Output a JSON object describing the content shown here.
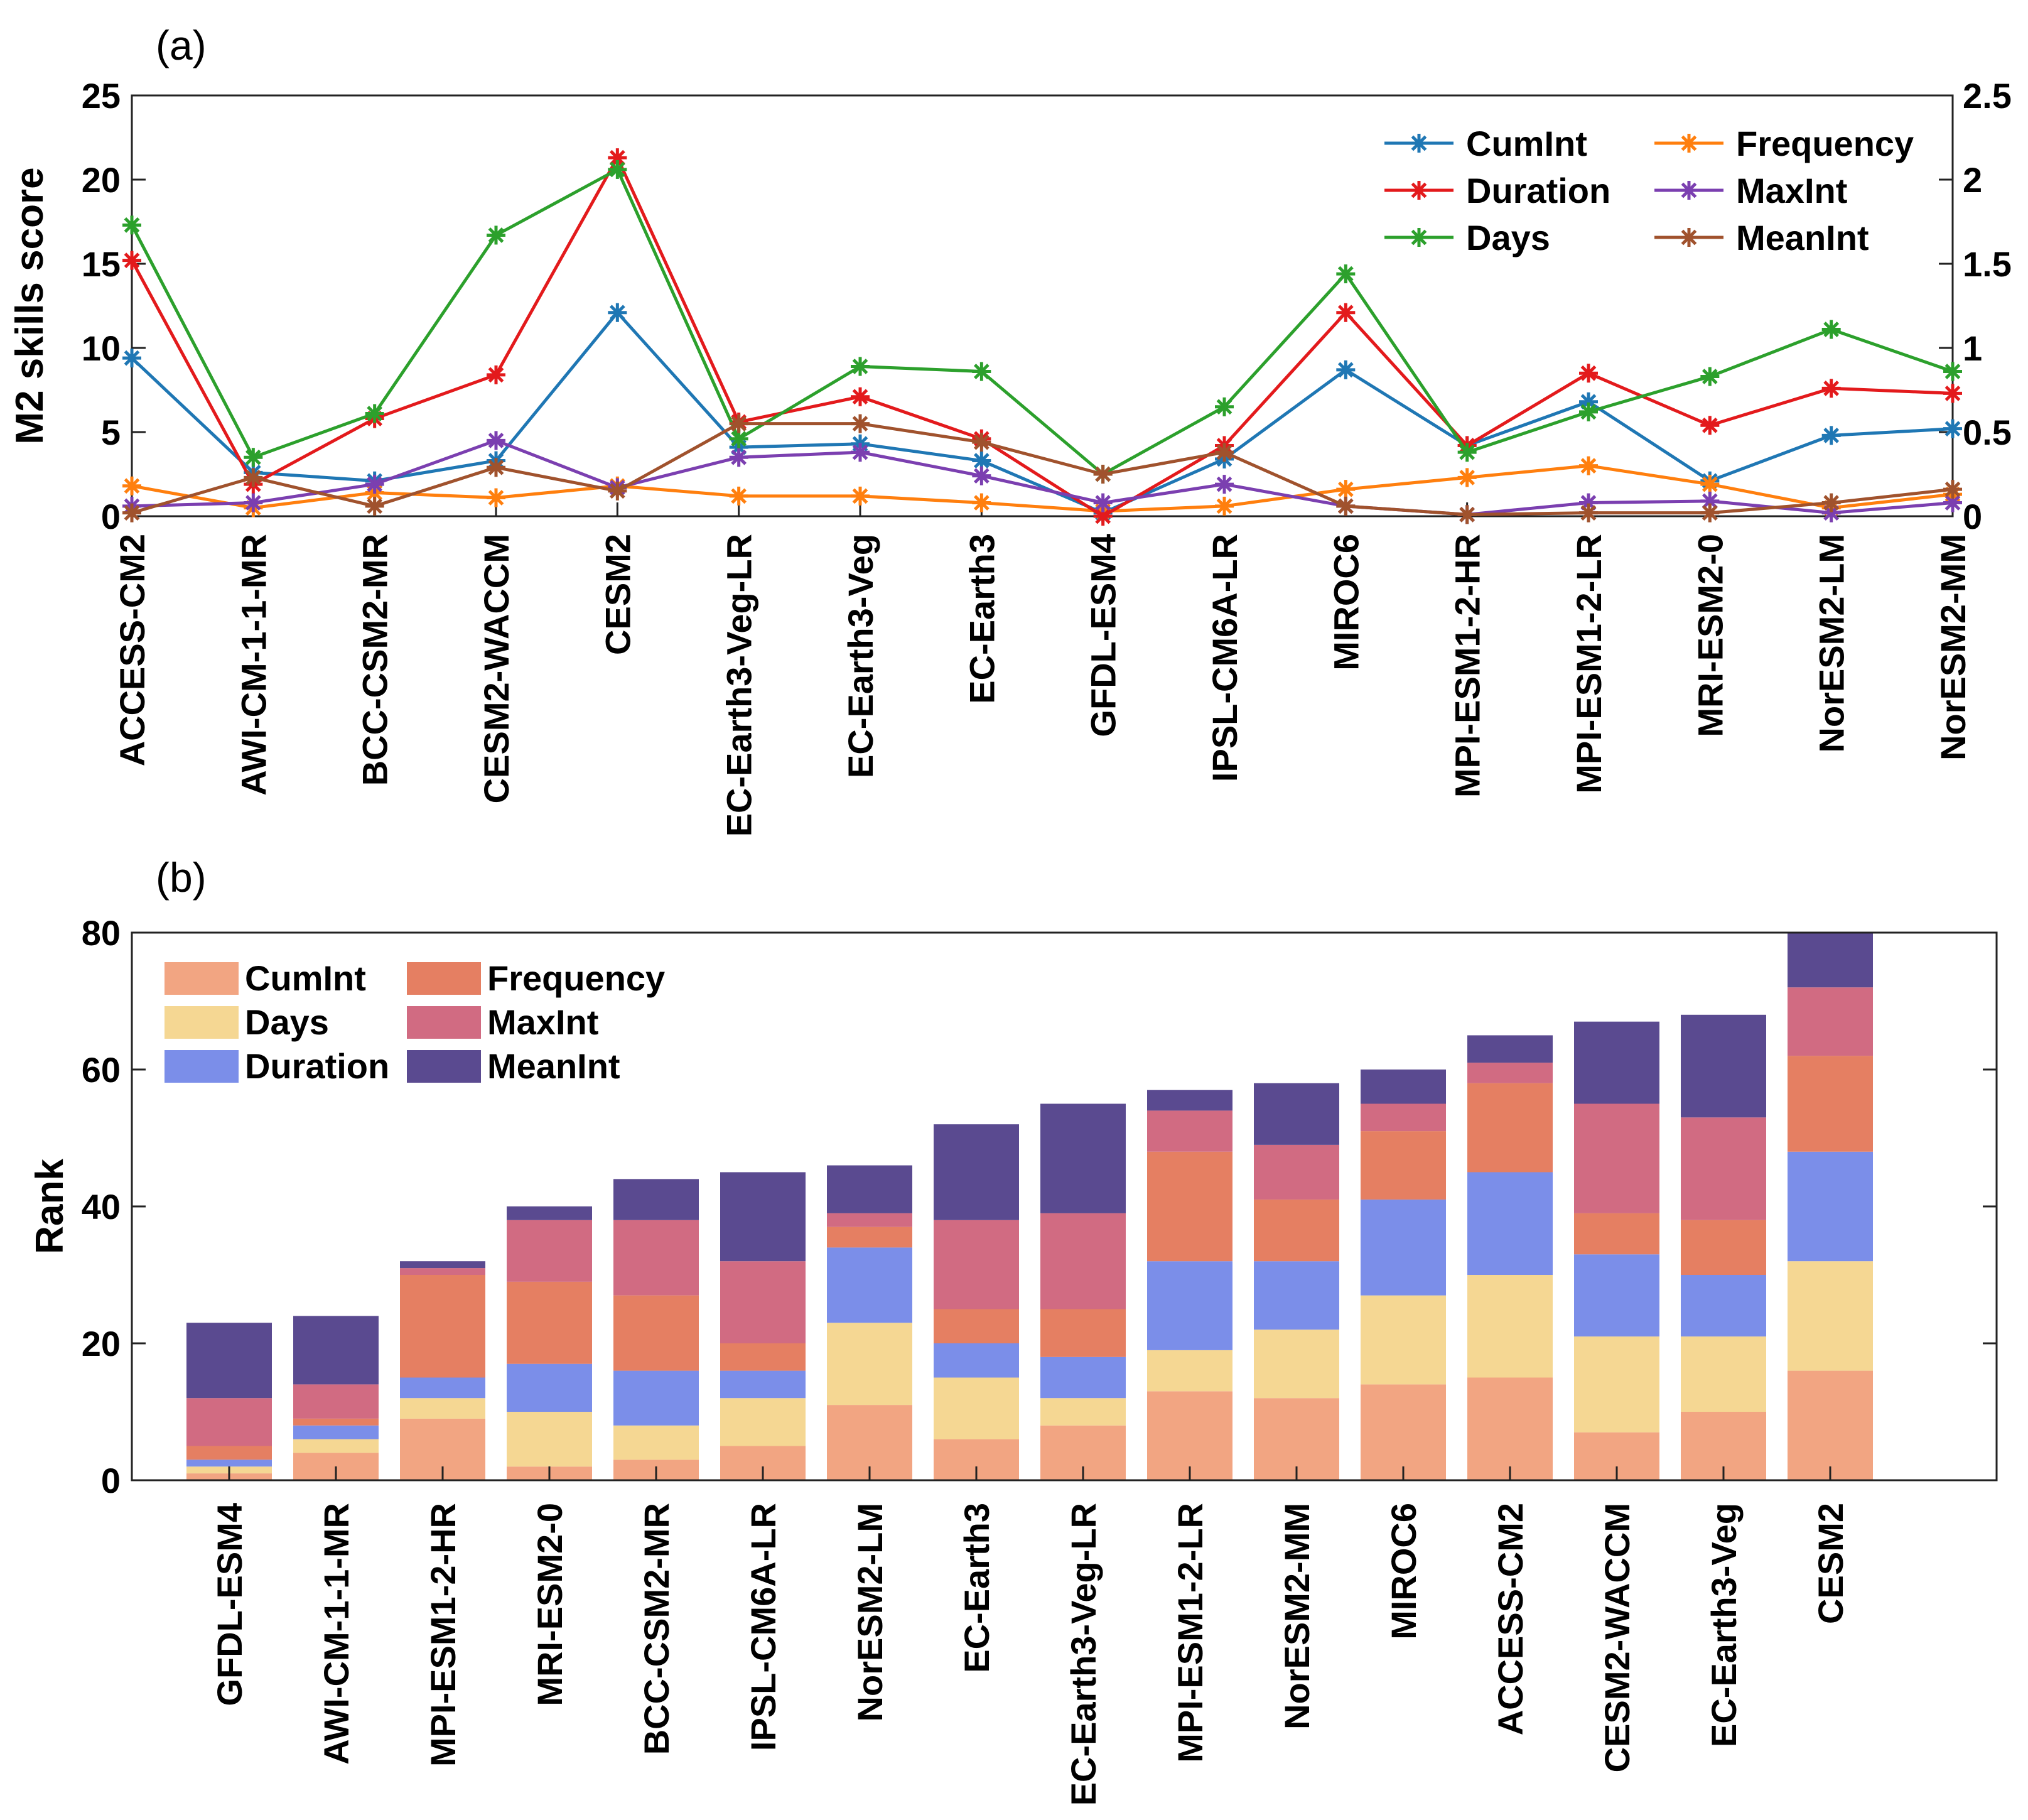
{
  "chart_data": [
    {
      "panel_label": "(a)",
      "type": "line",
      "ylabel": "M2 skills score",
      "ylim_left": [
        0,
        25
      ],
      "yticks_left": [
        "0",
        "5",
        "10",
        "15",
        "20",
        "25"
      ],
      "ylim_right": [
        0,
        2.5
      ],
      "yticks_right": [
        "0",
        "0.5",
        "1",
        "1.5",
        "2",
        "2.5"
      ],
      "grid": false,
      "legend_position": "top-right",
      "categories": [
        "ACCESS-CM2",
        "AWI-CM-1-1-MR",
        "BCC-CSM2-MR",
        "CESM2-WACCM",
        "CESM2",
        "EC-Earth3-Veg-LR",
        "EC-Earth3-Veg",
        "EC-Earth3",
        "GFDL-ESM4",
        "IPSL-CM6A-LR",
        "MIROC6",
        "MPI-ESM1-2-HR",
        "MPI-ESM1-2-LR",
        "MRI-ESM2-0",
        "NorESM2-LM",
        "NorESM2-MM"
      ],
      "series": [
        {
          "name": "CumInt",
          "axis": "left",
          "color": "#1f77b4",
          "values": [
            9.4,
            2.6,
            2.1,
            3.3,
            12.1,
            4.1,
            4.3,
            3.3,
            0.2,
            3.4,
            8.7,
            4.2,
            6.8,
            2.1,
            4.8,
            5.2
          ]
        },
        {
          "name": "Frequency",
          "axis": "right",
          "color": "#ff7f0e",
          "values": [
            0.18,
            0.05,
            0.14,
            0.11,
            0.18,
            0.12,
            0.12,
            0.08,
            0.03,
            0.06,
            0.16,
            0.23,
            0.3,
            0.19,
            0.05,
            0.13
          ]
        },
        {
          "name": "Duration",
          "axis": "left",
          "color": "#e31a1c",
          "values": [
            15.2,
            1.9,
            5.8,
            8.4,
            21.3,
            5.6,
            7.1,
            4.6,
            0.0,
            4.2,
            12.1,
            4.2,
            8.5,
            5.4,
            7.6,
            7.3
          ]
        },
        {
          "name": "MaxInt",
          "axis": "right",
          "color": "#7b3fb0",
          "values": [
            0.06,
            0.08,
            0.19,
            0.45,
            0.17,
            0.35,
            0.38,
            0.24,
            0.08,
            0.19,
            0.06,
            0.01,
            0.08,
            0.09,
            0.02,
            0.08
          ]
        },
        {
          "name": "Days",
          "axis": "left",
          "color": "#2ca02c",
          "values": [
            17.3,
            3.5,
            6.1,
            16.7,
            20.6,
            4.6,
            8.9,
            8.6,
            2.5,
            6.5,
            14.4,
            3.8,
            6.2,
            8.3,
            11.1,
            8.6
          ]
        },
        {
          "name": "MeanInt",
          "axis": "right",
          "color": "#a0522d",
          "values": [
            0.02,
            0.23,
            0.06,
            0.29,
            0.15,
            0.55,
            0.55,
            0.44,
            0.25,
            0.38,
            0.06,
            0.01,
            0.02,
            0.02,
            0.08,
            0.16
          ]
        }
      ]
    },
    {
      "panel_label": "(b)",
      "type": "bar",
      "stacked": true,
      "ylabel": "Rank",
      "ylim": [
        0,
        80
      ],
      "yticks": [
        "0",
        "20",
        "40",
        "60",
        "80"
      ],
      "grid": false,
      "legend_position": "top-left",
      "categories": [
        "GFDL-ESM4",
        "AWI-CM-1-1-MR",
        "MPI-ESM1-2-HR",
        "MRI-ESM2-0",
        "BCC-CSM2-MR",
        "IPSL-CM6A-LR",
        "NorESM2-LM",
        "EC-Earth3",
        "EC-Earth3-Veg-LR",
        "MPI-ESM1-2-LR",
        "NorESM2-MM",
        "MIROC6",
        "ACCESS-CM2",
        "CESM2-WACCM",
        "EC-Earth3-Veg",
        "CESM2"
      ],
      "series": [
        {
          "name": "CumInt",
          "color": "#f2a582",
          "values": [
            1,
            4,
            9,
            2,
            3,
            5,
            11,
            6,
            8,
            13,
            12,
            14,
            15,
            7,
            10,
            16
          ]
        },
        {
          "name": "Days",
          "color": "#f5d793",
          "values": [
            1,
            2,
            3,
            8,
            5,
            7,
            12,
            9,
            4,
            6,
            10,
            13,
            15,
            14,
            11,
            16
          ]
        },
        {
          "name": "Duration",
          "color": "#7b8ee9",
          "values": [
            1,
            2,
            3,
            7,
            8,
            4,
            11,
            5,
            6,
            13,
            10,
            14,
            15,
            12,
            9,
            16
          ]
        },
        {
          "name": "Frequency",
          "color": "#e57f62",
          "values": [
            2,
            1,
            15,
            12,
            11,
            4,
            3,
            5,
            7,
            16,
            9,
            10,
            13,
            6,
            8,
            14
          ]
        },
        {
          "name": "MaxInt",
          "color": "#d16b82",
          "values": [
            7,
            5,
            1,
            9,
            11,
            12,
            2,
            13,
            14,
            6,
            8,
            4,
            3,
            16,
            15,
            10
          ]
        },
        {
          "name": "MeanInt",
          "color": "#5a4a90",
          "values": [
            11,
            10,
            1,
            2,
            6,
            13,
            7,
            14,
            16,
            3,
            9,
            5,
            4,
            12,
            15,
            8
          ]
        }
      ],
      "totals": [
        23,
        24,
        32,
        40,
        44,
        45,
        46,
        52,
        55,
        57,
        58,
        60,
        65,
        67,
        68,
        80
      ]
    }
  ]
}
